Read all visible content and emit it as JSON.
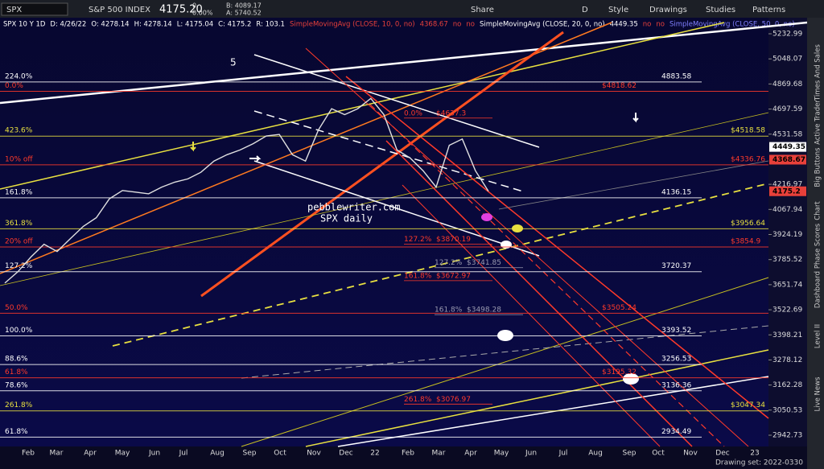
{
  "toolbar": {
    "symbol": "SPX",
    "description": "S&P 500 INDEX",
    "last": "4175.20",
    "change": "0",
    "change_pct": "0.00%",
    "bid": "B: 4089.17",
    "ask": "A: 5740.52",
    "buttons": [
      "Share",
      "D",
      "Style",
      "Drawings",
      "Studies",
      "Patterns"
    ]
  },
  "study_header": [
    {
      "text": "SPX 10 Y 1D",
      "color": "#ffffff"
    },
    {
      "text": "D: 4/26/22",
      "color": "#ffffff"
    },
    {
      "text": "O: 4278.14",
      "color": "#ffffff"
    },
    {
      "text": "H: 4278.14",
      "color": "#ffffff"
    },
    {
      "text": "L: 4175.04",
      "color": "#ffffff"
    },
    {
      "text": "C: 4175.2",
      "color": "#ffffff"
    },
    {
      "text": "R: 103.1",
      "color": "#ffffff"
    },
    {
      "text": "SimpleMovingAvg (CLOSE, 10, 0, no)",
      "color": "#e8403a"
    },
    {
      "text": "4368.67",
      "color": "#e8403a"
    },
    {
      "text": "no",
      "color": "#e8403a"
    },
    {
      "text": "no",
      "color": "#e8403a"
    },
    {
      "text": "SimpleMovingAvg (CLOSE, 20, 0, no)",
      "color": "#ffffff"
    },
    {
      "text": "4449.35",
      "color": "#ffffff"
    },
    {
      "text": "no",
      "color": "#e8403a"
    },
    {
      "text": "no",
      "color": "#e8403a"
    },
    {
      "text": "SimpleMovingAvg (CLOSE, 50, 0, no)",
      "color": "#8080ff"
    }
  ],
  "price_axis": {
    "scale": "log",
    "ticks": [
      5232.99,
      5048.07,
      4869.68,
      4697.59,
      4531.58,
      4216.97,
      4067.94,
      3924.19,
      3785.52,
      3651.74,
      3522.69,
      3398.21,
      3278.12,
      3162.28,
      3050.53,
      2942.73
    ]
  },
  "price_tags": [
    {
      "value": 4449.35,
      "bg": "#ffffff"
    },
    {
      "value": 4368.67,
      "bg": "#e8403a"
    },
    {
      "value": 4175.2,
      "bg": "#e8403a"
    }
  ],
  "time_axis": [
    "Feb",
    "Mar",
    "Apr",
    "May",
    "Jun",
    "Jul",
    "Aug",
    "Sep",
    "Oct",
    "Nov",
    "Dec",
    "22",
    "Feb",
    "Mar",
    "Apr",
    "May",
    "Jun",
    "Jul",
    "Aug",
    "Sep",
    "Oct",
    "Nov",
    "Dec",
    "23"
  ],
  "levels": [
    {
      "pct": "224.0%",
      "price": 4883.58,
      "color": "#ffffff",
      "set": "white"
    },
    {
      "pct": "0.0%",
      "price": {
        "value": 4818.62,
        "label": "$4818.62"
      },
      "color": "#ff3a2a",
      "set": "red"
    },
    {
      "pct": "423.6%",
      "price": {
        "value": 4518.58,
        "label": "$4518.58"
      },
      "color": "#e8e040",
      "set": "yellow"
    },
    {
      "pct": "10% off",
      "price": {
        "value": 4336.76,
        "label": "$4336.76"
      },
      "color": "#ff3a2a",
      "set": "far"
    },
    {
      "pct": "161.8%",
      "price": 4136.15,
      "color": "#ffffff",
      "set": "white"
    },
    {
      "pct": "361.8%",
      "price": {
        "value": 3956.64,
        "label": "$3956.64"
      },
      "color": "#e8e040",
      "set": "yellow"
    },
    {
      "pct": "20% off",
      "price": {
        "value": 3854.9,
        "label": "$3854.9"
      },
      "color": "#ff3a2a",
      "set": "far"
    },
    {
      "pct": "127.2%",
      "price": 3720.37,
      "color": "#ffffff",
      "set": "white"
    },
    {
      "pct": "50.0%",
      "price": {
        "value": 3505.24,
        "label": "$3505.24"
      },
      "color": "#ff3a2a",
      "set": "red"
    },
    {
      "pct": "100.0%",
      "price": 3393.52,
      "color": "#ffffff",
      "set": "white"
    },
    {
      "pct": "88.6%",
      "price": 3256.53,
      "color": "#ffffff",
      "set": "white"
    },
    {
      "pct": "61.8%",
      "price": {
        "value": 3195.32,
        "label": "$3195.32"
      },
      "color": "#ff3a2a",
      "set": "red"
    },
    {
      "pct": "78.6%",
      "price": 3136.36,
      "color": "#ffffff",
      "set": "white"
    },
    {
      "pct": "261.8%",
      "price": {
        "value": 3047.34,
        "label": "$3047.34"
      },
      "color": "#e8e040",
      "set": "yellow"
    },
    {
      "pct": "61.8%",
      "price": 2934.49,
      "color": "#ffffff",
      "set": "white"
    }
  ],
  "mid_levels": [
    {
      "pct": "0.0%",
      "price": {
        "value": 4637.3,
        "label": "$4637.3"
      },
      "color": "#ff3a2a"
    },
    {
      "pct": "127.2%",
      "price": {
        "value": 3870.19,
        "label": "$3870.19"
      },
      "color": "#ff3a2a"
    },
    {
      "pct": "161.8%",
      "price": {
        "value": 3672.97,
        "label": "$3672.97"
      },
      "color": "#ff3a2a"
    },
    {
      "pct": "261.8%",
      "price": {
        "value": 3076.97,
        "label": "$3076.97"
      },
      "color": "#ff3a2a"
    },
    {
      "pct": "127.2%",
      "price": {
        "value": 3741.85,
        "label": "$3741.85"
      },
      "color": "#9a9ab0"
    },
    {
      "pct": "161.8%",
      "price": {
        "value": 3498.28,
        "label": "$3498.28"
      },
      "color": "#9a9ab0"
    }
  ],
  "price_closes": [
    3660,
    3720,
    3800,
    3870,
    3830,
    3900,
    3970,
    4020,
    4130,
    4180,
    4170,
    4160,
    4200,
    4230,
    4250,
    4290,
    4360,
    4400,
    4430,
    4470,
    4520,
    4530,
    4400,
    4360,
    4560,
    4700,
    4660,
    4700,
    4770,
    4660,
    4430,
    4380,
    4300,
    4200,
    4460,
    4500,
    4300,
    4175
  ],
  "annotations": {
    "wave": "5",
    "site": "pebblewriter.com",
    "chart_name": "SPX daily"
  },
  "side_tabs": [
    "Times And Sales",
    "Active Trader",
    "Big Buttons",
    "Chart",
    "Phase Scores",
    "Dashboard",
    "Level II",
    "Live News"
  ],
  "footer": "Drawing set: 2022-0330"
}
